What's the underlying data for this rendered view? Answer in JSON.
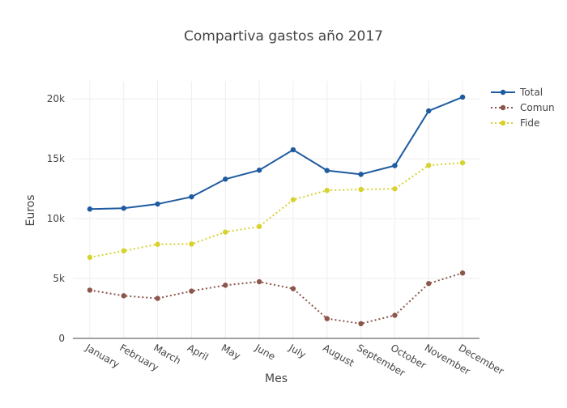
{
  "chart_data": {
    "type": "line",
    "title": "Compartiva gastos año 2017",
    "xlabel": "Mes",
    "ylabel": "Euros",
    "categories": [
      "January",
      "February",
      "March",
      "April",
      "May",
      "June",
      "July",
      "August",
      "September",
      "October",
      "November",
      "December"
    ],
    "ylim": [
      0,
      21500
    ],
    "yticks": [
      0,
      5000,
      10000,
      15000,
      20000
    ],
    "ytick_labels": [
      "0",
      "5k",
      "10k",
      "15k",
      "20k"
    ],
    "grid": true,
    "legend_position": "top-right",
    "series": [
      {
        "name": "Total",
        "color": "#1f5ba0",
        "dash": "solid",
        "values": [
          10800,
          10870,
          11220,
          11820,
          13300,
          14050,
          15750,
          14020,
          13700,
          14430,
          19000,
          20150
        ]
      },
      {
        "name": "Comun",
        "color": "#8c564b",
        "dash": "dot",
        "values": [
          4030,
          3560,
          3340,
          3950,
          4440,
          4730,
          4150,
          1650,
          1230,
          1930,
          4580,
          5460
        ]
      },
      {
        "name": "Fide",
        "color": "#d8d22f",
        "dash": "dot",
        "values": [
          6770,
          7310,
          7860,
          7880,
          8880,
          9340,
          11580,
          12360,
          12440,
          12490,
          14450,
          14660
        ]
      }
    ]
  }
}
